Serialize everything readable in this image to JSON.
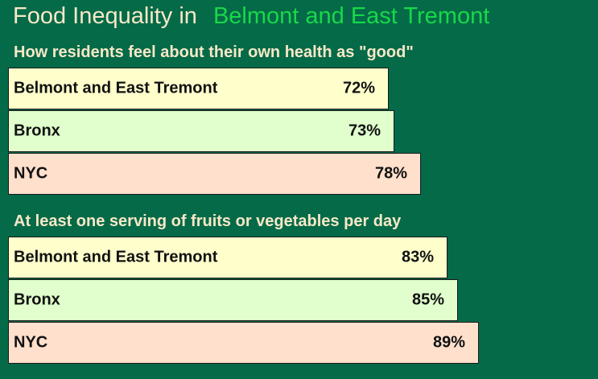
{
  "title": {
    "prefix": "Food Inequality in",
    "highlight": "Belmont and East Tremont"
  },
  "colors": {
    "background": "#046a47",
    "title_text": "#f7e8c8",
    "title_highlight": "#18d84a",
    "bar_belmont": "#ffffcc",
    "bar_bronx": "#e0ffcc",
    "bar_nyc": "#ffe0cc"
  },
  "chart_data": [
    {
      "type": "bar",
      "orientation": "horizontal",
      "title": "How residents feel about their own health as \"good\"",
      "categories": [
        "Belmont and East Tremont",
        "Bronx",
        "NYC"
      ],
      "values": [
        72,
        73,
        78
      ],
      "value_labels": [
        "72%",
        "73%",
        "78%"
      ],
      "unit": "%",
      "grid": false,
      "legend": "none"
    },
    {
      "type": "bar",
      "orientation": "horizontal",
      "title": "At least one serving of fruits or vegetables per day",
      "categories": [
        "Belmont and East Tremont",
        "Bronx",
        "NYC"
      ],
      "values": [
        83,
        85,
        89
      ],
      "value_labels": [
        "83%",
        "85%",
        "89%"
      ],
      "unit": "%",
      "grid": false,
      "legend": "none"
    }
  ]
}
